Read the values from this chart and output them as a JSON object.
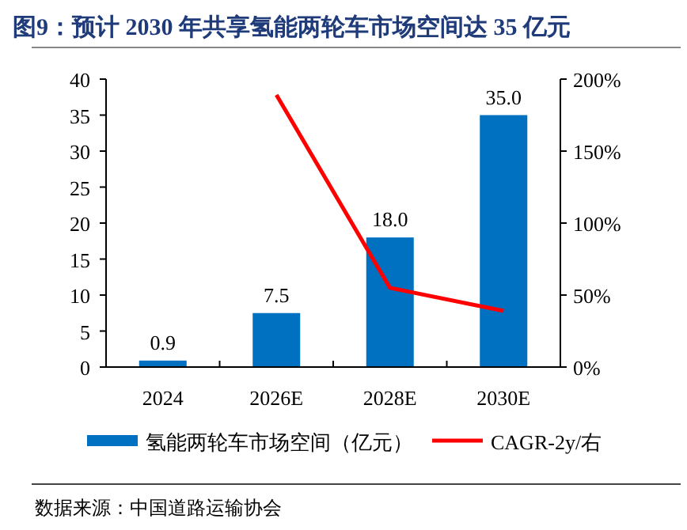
{
  "chart_data": {
    "type": "bar",
    "title": "图9：预计 2030 年共享氢能两轮车市场空间达 35 亿元",
    "categories": [
      "2024",
      "2026E",
      "2028E",
      "2030E"
    ],
    "series": [
      {
        "name": "氢能两轮车市场空间（亿元）",
        "color": "#0070c0",
        "values": [
          0.9,
          7.5,
          18,
          35
        ],
        "value_labels": [
          "0.9",
          "7.5",
          "18.0",
          "35.0"
        ]
      },
      {
        "name": "CAGR-2y/右",
        "type": "line",
        "axis": "y2",
        "color": "#ff0000",
        "values": [
          null,
          189,
          55,
          39
        ]
      }
    ],
    "ylim": [
      0,
      40
    ],
    "yticks": [
      0,
      5,
      10,
      15,
      20,
      25,
      30,
      35,
      40
    ],
    "y2lim": [
      0,
      200
    ],
    "y2ticks": [
      {
        "value": 0,
        "label": "0%"
      },
      {
        "value": 50,
        "label": "50%"
      },
      {
        "value": 100,
        "label": "100%"
      },
      {
        "value": 150,
        "label": "150%"
      },
      {
        "value": 200,
        "label": "200%"
      }
    ],
    "legend": "bottom",
    "annotations": [
      "数据来源：中国道路运输协会"
    ]
  }
}
